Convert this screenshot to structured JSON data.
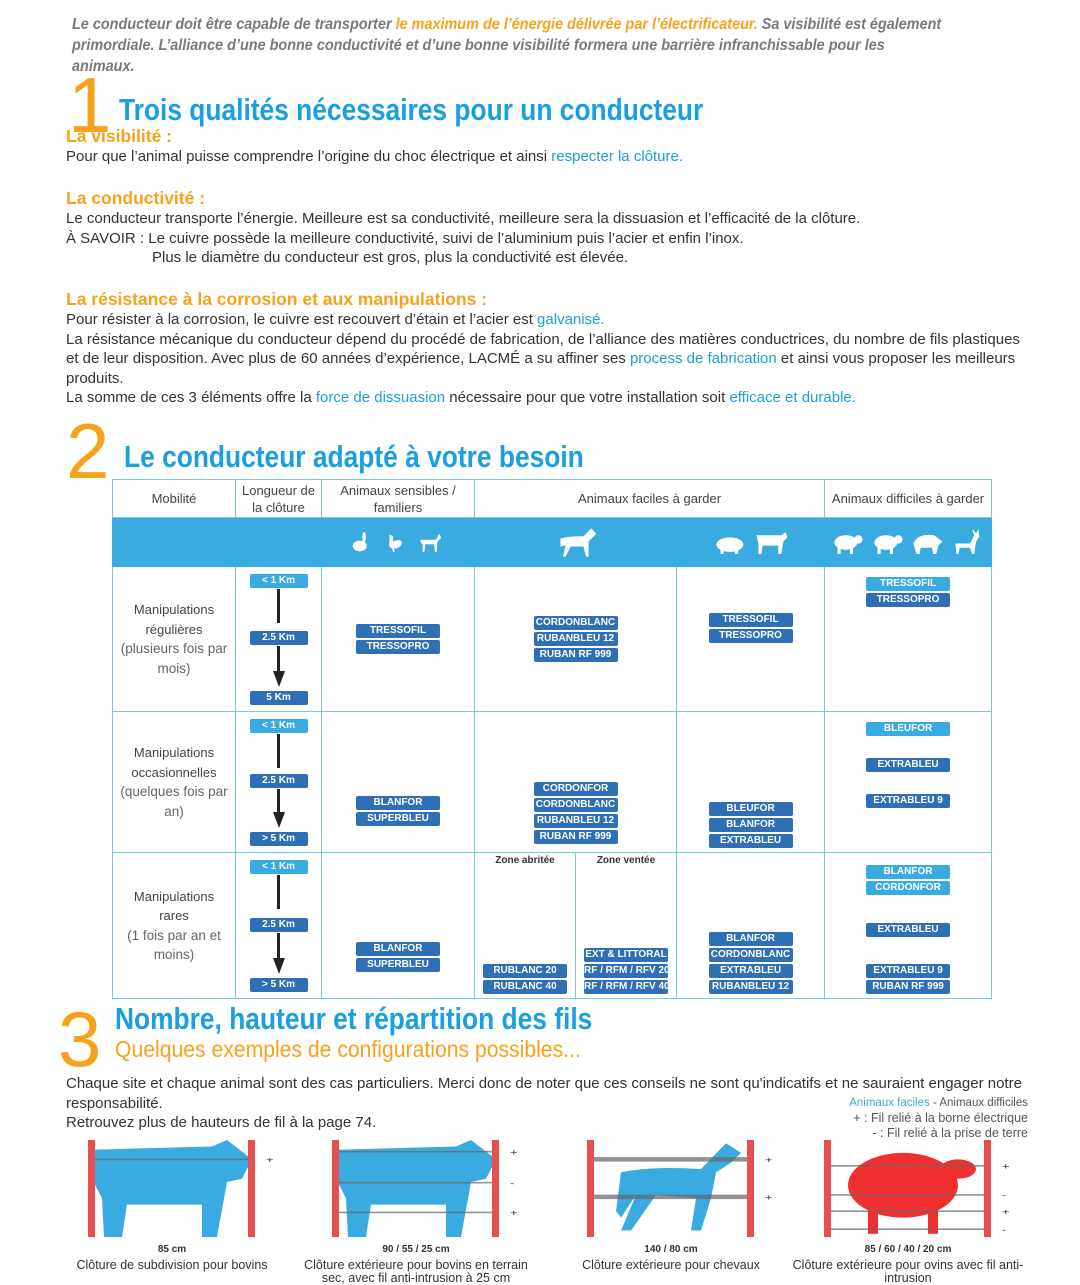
{
  "intro": [
    {
      "t": "Le conducteur doit être capable de transporter "
    },
    {
      "t": "le maximum de l’énergie délivrée par l’électrificateur.",
      "hl": true
    },
    {
      "t": " Sa visibilité est également primordiale. L’alliance d’une bonne conductivité et d’une bonne visibilité formera une barrière infranchissable pour les animaux."
    }
  ],
  "s1": {
    "num": "1",
    "title": "Trois qualités nécessaires pour un conducteur",
    "vis_title": "La visibilité :",
    "vis_text": [
      {
        "t": "Pour que l’animal puisse comprendre l’origine du choc électrique et ainsi "
      },
      {
        "t": "respecter la clôture.",
        "b": true
      }
    ],
    "cond_title": "La conductivité :",
    "cond_line1": "Le conducteur transporte l’énergie. Meilleure est sa conductivité, meilleure sera la dissuasion et l’efficacité de la clôture.",
    "cond_savoir": "À SAVOIR",
    "cond_line2": " : Le cuivre possède la meilleure conductivité, suivi de l’aluminium puis l’acier et enfin l’inox.",
    "cond_line3": "Plus le diamètre du conducteur est gros, plus la conductivité est élevée.",
    "res_title": "La résistance à la corrosion et aux manipulations :",
    "res_text": [
      {
        "t": "Pour résister à la corrosion, le cuivre est recouvert d’étain et l’acier est "
      },
      {
        "t": "galvanisé.",
        "b": true
      },
      {
        "t": "\nLa résistance mécanique du conducteur dépend du procédé de fabrication, de l’alliance des matières conductrices, du nombre de fils plastiques et de leur disposition. Avec plus de 60 années d’expérience, LACMÉ a su affiner ses "
      },
      {
        "t": "process de fabrication",
        "b": true
      },
      {
        "t": " et ainsi vous proposer les meilleurs produits.\nLa somme de ces 3 éléments offre la "
      },
      {
        "t": "force de dissuasion",
        "b": true
      },
      {
        "t": " nécessaire pour que votre installation soit "
      },
      {
        "t": "efficace et durable.",
        "b": true
      }
    ]
  },
  "s2": {
    "num": "2",
    "title": "Le conducteur adapté à votre besoin",
    "headers": [
      "Mobilité",
      "Longueur de la clôture",
      "Animaux sensibles / familiers",
      "Animaux faciles à garder",
      "Animaux difficiles à garder"
    ],
    "icons": [
      "rabbit-icon",
      "chicken-icon",
      "dog-icon",
      "horse-icon",
      "pig-icon",
      "cow-icon",
      "sheep-icon",
      "sheep-icon",
      "boar-icon",
      "deer-icon"
    ],
    "rows": [
      {
        "title": "Manipulations régulières",
        "sub": "(plusieurs fois par mois)",
        "lengths": [
          "< 1 Km",
          "2.5 Km",
          "5 Km"
        ],
        "sensibles": [
          "TRESSOFIL",
          "TRESSOPRO"
        ],
        "faciles_a": [
          "CORDONBLANC",
          "RUBANBLEU 12",
          "RUBAN RF 999"
        ],
        "faciles_b": [
          "TRESSOFIL",
          "TRESSOPRO"
        ],
        "difficiles": [
          [
            "TRESSOFIL*",
            "TRESSOPRO"
          ]
        ]
      },
      {
        "title": "Manipulations occasionnelles",
        "sub": "(quelques fois par an)",
        "lengths": [
          "< 1 Km",
          "2.5 Km",
          "> 5 Km"
        ],
        "sensibles": [
          "BLANFOR",
          "SUPERBLEU"
        ],
        "faciles_a": [
          "CORDONFOR",
          "CORDONBLANC",
          "RUBANBLEU 12",
          "RUBAN RF 999"
        ],
        "faciles_b": [
          "BLEUFOR",
          "BLANFOR",
          "EXTRABLEU"
        ],
        "difficiles": [
          [
            "BLEUFOR*"
          ],
          [
            "EXTRABLEU"
          ],
          [
            "EXTRABLEU 9"
          ]
        ]
      },
      {
        "title": "Manipulations rares",
        "sub": "(1 fois par an et moins)",
        "lengths": [
          "< 1 Km",
          "2.5 Km",
          "> 5 Km"
        ],
        "sensibles": [
          "BLANFOR",
          "SUPERBLEU"
        ],
        "zone_abritee": "Zone abritée",
        "zone_ventee": "Zone ventée",
        "faciles_abritee": [
          "RUBLANC 20",
          "RUBLANC 40"
        ],
        "faciles_ventee": [
          "EXT & LITTORAL",
          "RF / RFM / RFV 20",
          "RF / RFM / RFV 40"
        ],
        "faciles_b": [
          "BLANFOR",
          "CORDONBLANC",
          "EXTRABLEU",
          "RUBANBLEU 12"
        ],
        "difficiles": [
          [
            "BLANFOR*",
            "CORDONFOR*"
          ],
          [
            "EXTRABLEU"
          ],
          [
            "EXTRABLEU 9",
            "RUBAN RF 999"
          ]
        ]
      }
    ]
  },
  "s3": {
    "num": "3",
    "title": "Nombre, hauteur et répartition des fils",
    "subtitle": "Quelques exemples de configurations possibles...",
    "text1": "Chaque site et chaque animal sont des cas particuliers. Merci donc de noter que ces conseils ne sont qu'indicatifs et ne sauraient engager notre responsabilité.",
    "text2": "Retrouvez plus de hauteurs de fil à la page 74.",
    "legend": {
      "faciles": "Animaux faciles",
      "sep": " - ",
      "difficiles": "Animaux difficiles",
      "plus": "+ : Fil relié à la borne électrique",
      "minus": "- : Fil relié à la prise de terre"
    },
    "figures": [
      {
        "animal": "cow-icon",
        "color": "#3aabe0",
        "heights": "85 cm",
        "caption": "Clôture de subdivision pour bovins",
        "wires": [
          "+"
        ]
      },
      {
        "animal": "cow-calf-icon",
        "color": "#3aabe0",
        "heights": "90 / 55 / 25 cm",
        "caption": "Clôture extérieure pour bovins en terrain sec, avec fil anti-intrusion à 25 cm",
        "wires": [
          "+",
          "-",
          "+"
        ]
      },
      {
        "animal": "horse-icon",
        "color": "#3aabe0",
        "heights": "140 / 80 cm",
        "caption": "Clôture extérieure pour chevaux",
        "wires": [
          "+",
          "+"
        ]
      },
      {
        "animal": "sheep-icon",
        "color": "#f03030",
        "heights": "85 / 60 / 40 / 20 cm",
        "caption": "Clôture extérieure pour ovins avec fil anti-intrusion",
        "wires": [
          "+",
          "-",
          "+",
          "-"
        ]
      }
    ]
  },
  "colors": {
    "orange": "#f7a21b",
    "blue": "#1a9fe0",
    "tag_dark": "#2f6fb5",
    "tag_light": "#3aabe0",
    "post": "#e85050"
  }
}
